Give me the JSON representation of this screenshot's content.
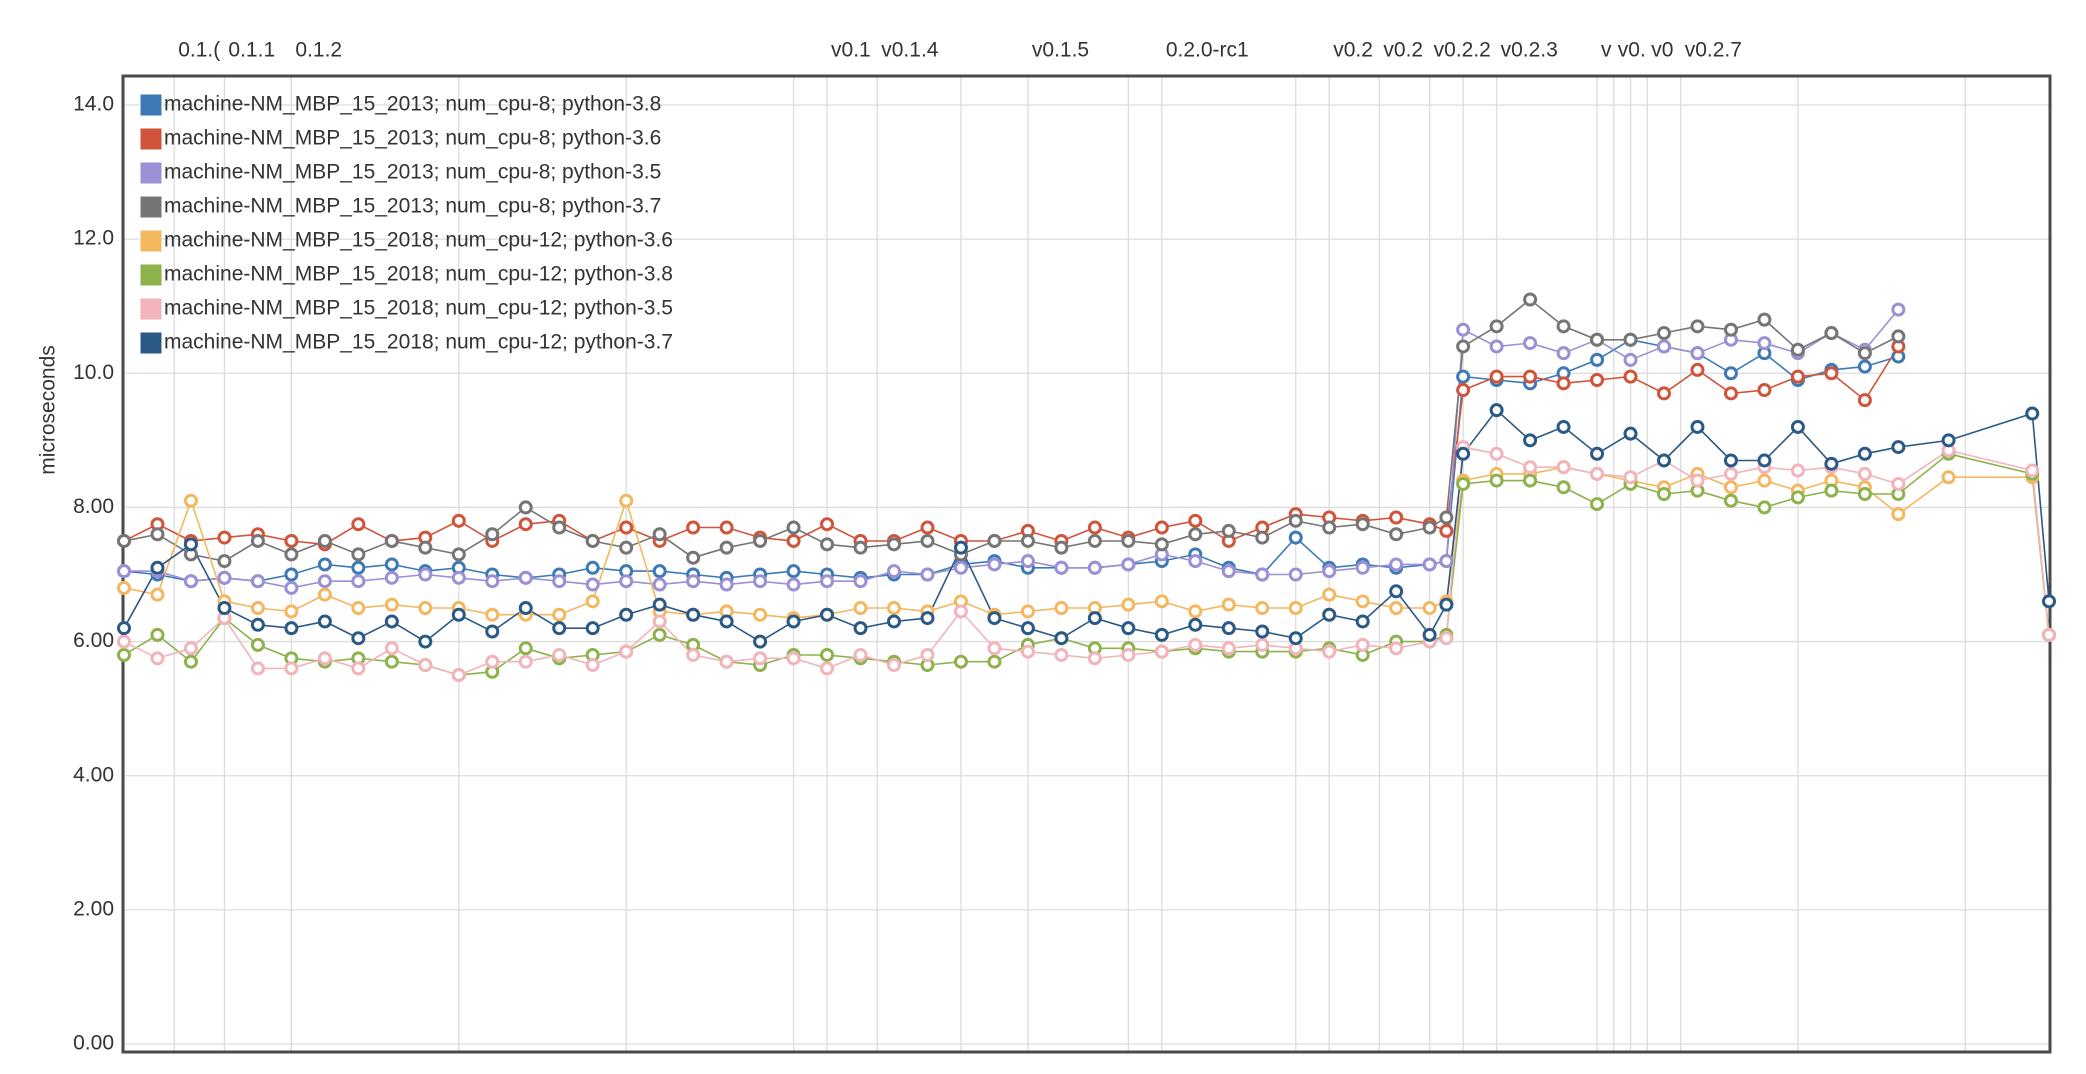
{
  "chart_data": {
    "type": "line",
    "y_label": "microseconds",
    "x": [
      0,
      2,
      4,
      6,
      8,
      10,
      12,
      14,
      16,
      18,
      20,
      22,
      24,
      26,
      28,
      30,
      32,
      34,
      36,
      38,
      40,
      42,
      44,
      46,
      48,
      50,
      52,
      54,
      56,
      58,
      60,
      62,
      64,
      66,
      68,
      70,
      72,
      74,
      76,
      78,
      79,
      80,
      82,
      84,
      86,
      88,
      90,
      92,
      94,
      96,
      98,
      100,
      102,
      104,
      106,
      109,
      114,
      115
    ],
    "xlim": [
      0,
      115
    ],
    "xticks": [
      0,
      10,
      20,
      30,
      40,
      50,
      60,
      70,
      80,
      90,
      100,
      110
    ],
    "ylim": [
      0,
      14
    ],
    "yticks": [
      {
        "value": 0,
        "label": "0.00"
      },
      {
        "value": 2,
        "label": "2.00"
      },
      {
        "value": 4,
        "label": "4.00"
      },
      {
        "value": 6,
        "label": "6.00"
      },
      {
        "value": 8,
        "label": "8.00"
      },
      {
        "value": 10,
        "label": "10.0"
      },
      {
        "value": 12,
        "label": "12.0"
      },
      {
        "value": 14,
        "label": "14.0"
      }
    ],
    "grid": true,
    "legend": "top-left",
    "annotations": [
      {
        "x": 3,
        "label": "0.1.("
      },
      {
        "x": 6,
        "label": "0.1.1"
      },
      {
        "x": 10,
        "label": "0.1.2"
      },
      {
        "x": 42,
        "label": "v0.1"
      },
      {
        "x": 45,
        "label": "v0.1.4"
      },
      {
        "x": 54,
        "label": "v0.1.5"
      },
      {
        "x": 62,
        "label": "0.2.0-rc1"
      },
      {
        "x": 72,
        "label": "v0.2"
      },
      {
        "x": 75,
        "label": "v0.2"
      },
      {
        "x": 78,
        "label": "v0.2.2"
      },
      {
        "x": 82,
        "label": "v0.2.3"
      },
      {
        "x": 88,
        "label": "v"
      },
      {
        "x": 89,
        "label": "v0."
      },
      {
        "x": 91,
        "label": "v0"
      },
      {
        "x": 93,
        "label": "v0.2.7"
      }
    ],
    "series": [
      {
        "name": "machine-NM_MBP_15_2013; num_cpu-8; python-3.8",
        "color": "#3d7ab5",
        "values": [
          7.05,
          7.0,
          6.9,
          6.95,
          6.9,
          7.0,
          7.15,
          7.1,
          7.15,
          7.05,
          7.1,
          7.0,
          6.95,
          7.0,
          7.1,
          7.05,
          7.05,
          7.0,
          6.95,
          7.0,
          7.05,
          7.0,
          6.95,
          7.0,
          7.0,
          7.15,
          7.2,
          7.1,
          7.1,
          7.1,
          7.15,
          7.2,
          7.3,
          7.1,
          7.0,
          7.55,
          7.1,
          7.15,
          7.1,
          7.15,
          7.2,
          9.95,
          9.9,
          9.85,
          10.0,
          10.2,
          10.5,
          10.4,
          10.3,
          10.0,
          10.3,
          9.9,
          10.05,
          10.1,
          10.25,
          null,
          null,
          null
        ]
      },
      {
        "name": "machine-NM_MBP_15_2013; num_cpu-8; python-3.6",
        "color": "#d1533a",
        "values": [
          7.5,
          7.75,
          7.5,
          7.55,
          7.6,
          7.5,
          7.45,
          7.75,
          7.5,
          7.55,
          7.8,
          7.5,
          7.75,
          7.8,
          7.5,
          7.7,
          7.5,
          7.7,
          7.7,
          7.55,
          7.5,
          7.75,
          7.5,
          7.5,
          7.7,
          7.5,
          7.5,
          7.65,
          7.5,
          7.7,
          7.55,
          7.7,
          7.8,
          7.5,
          7.7,
          7.9,
          7.85,
          7.8,
          7.85,
          7.75,
          7.65,
          9.75,
          9.95,
          9.95,
          9.85,
          9.9,
          9.95,
          9.7,
          10.05,
          9.7,
          9.75,
          9.95,
          10.0,
          9.6,
          10.4,
          null,
          null,
          null
        ]
      },
      {
        "name": "machine-NM_MBP_15_2013; num_cpu-8; python-3.5",
        "color": "#9b90d6",
        "values": [
          7.05,
          7.05,
          6.9,
          6.95,
          6.9,
          6.8,
          6.9,
          6.9,
          6.95,
          7.0,
          6.95,
          6.9,
          6.95,
          6.9,
          6.85,
          6.9,
          6.85,
          6.9,
          6.85,
          6.9,
          6.85,
          6.9,
          6.9,
          7.05,
          7.0,
          7.1,
          7.15,
          7.2,
          7.1,
          7.1,
          7.15,
          7.3,
          7.2,
          7.05,
          7.0,
          7.0,
          7.05,
          7.1,
          7.15,
          7.15,
          7.2,
          10.65,
          10.4,
          10.45,
          10.3,
          10.5,
          10.2,
          10.4,
          10.3,
          10.5,
          10.45,
          10.3,
          10.6,
          10.35,
          10.95,
          null,
          null,
          null
        ]
      },
      {
        "name": "machine-NM_MBP_15_2013; num_cpu-8; python-3.7",
        "color": "#757575",
        "values": [
          7.5,
          7.6,
          7.3,
          7.2,
          7.5,
          7.3,
          7.5,
          7.3,
          7.5,
          7.4,
          7.3,
          7.6,
          8.0,
          7.7,
          7.5,
          7.4,
          7.6,
          7.25,
          7.4,
          7.5,
          7.7,
          7.45,
          7.4,
          7.45,
          7.5,
          7.3,
          7.5,
          7.5,
          7.4,
          7.5,
          7.5,
          7.45,
          7.6,
          7.65,
          7.55,
          7.8,
          7.7,
          7.75,
          7.6,
          7.7,
          7.85,
          10.4,
          10.7,
          11.1,
          10.7,
          10.5,
          10.5,
          10.6,
          10.7,
          10.65,
          10.8,
          10.35,
          10.6,
          10.3,
          10.55,
          null,
          null,
          null
        ]
      },
      {
        "name": "machine-NM_MBP_15_2018; num_cpu-12; python-3.6",
        "color": "#f4b75f",
        "values": [
          6.8,
          6.7,
          8.1,
          6.6,
          6.5,
          6.45,
          6.7,
          6.5,
          6.55,
          6.5,
          6.5,
          6.4,
          6.4,
          6.4,
          6.6,
          8.1,
          6.45,
          6.4,
          6.45,
          6.4,
          6.35,
          6.4,
          6.5,
          6.5,
          6.45,
          6.6,
          6.4,
          6.45,
          6.5,
          6.5,
          6.55,
          6.6,
          6.45,
          6.55,
          6.5,
          6.5,
          6.7,
          6.6,
          6.5,
          6.5,
          6.6,
          8.4,
          8.5,
          8.5,
          8.6,
          8.5,
          8.4,
          8.3,
          8.5,
          8.3,
          8.4,
          8.25,
          8.4,
          8.3,
          7.9,
          8.45,
          8.45,
          6.1
        ]
      },
      {
        "name": "machine-NM_MBP_15_2018; num_cpu-12; python-3.8",
        "color": "#8db24c",
        "values": [
          5.8,
          6.1,
          5.7,
          6.35,
          5.95,
          5.75,
          5.7,
          5.75,
          5.7,
          5.65,
          5.5,
          5.55,
          5.9,
          5.75,
          5.8,
          5.85,
          6.1,
          5.95,
          5.7,
          5.65,
          5.8,
          5.8,
          5.75,
          5.7,
          5.65,
          5.7,
          5.7,
          5.95,
          6.05,
          5.9,
          5.9,
          5.85,
          5.9,
          5.85,
          5.85,
          5.85,
          5.9,
          5.8,
          6.0,
          6.0,
          6.1,
          8.35,
          8.4,
          8.4,
          8.3,
          8.05,
          8.35,
          8.2,
          8.25,
          8.1,
          8.0,
          8.15,
          8.25,
          8.2,
          8.2,
          8.8,
          8.5,
          6.1
        ]
      },
      {
        "name": "machine-NM_MBP_15_2018; num_cpu-12; python-3.5",
        "color": "#f2b3ba",
        "values": [
          6.0,
          5.75,
          5.9,
          6.35,
          5.6,
          5.6,
          5.75,
          5.6,
          5.9,
          5.65,
          5.5,
          5.7,
          5.7,
          5.8,
          5.65,
          5.85,
          6.3,
          5.8,
          5.7,
          5.75,
          5.75,
          5.6,
          5.8,
          5.65,
          5.8,
          6.45,
          5.9,
          5.85,
          5.8,
          5.75,
          5.8,
          5.85,
          5.95,
          5.9,
          5.95,
          5.9,
          5.85,
          5.95,
          5.9,
          6.0,
          6.05,
          8.9,
          8.8,
          8.6,
          8.6,
          8.5,
          8.45,
          8.7,
          8.4,
          8.5,
          8.6,
          8.55,
          8.6,
          8.5,
          8.35,
          8.85,
          8.55,
          6.1
        ]
      },
      {
        "name": "machine-NM_MBP_15_2018; num_cpu-12; python-3.7",
        "color": "#2b5986",
        "values": [
          6.2,
          7.1,
          7.45,
          6.5,
          6.25,
          6.2,
          6.3,
          6.05,
          6.3,
          6.0,
          6.4,
          6.15,
          6.5,
          6.2,
          6.2,
          6.4,
          6.55,
          6.4,
          6.3,
          6.0,
          6.3,
          6.4,
          6.2,
          6.3,
          6.35,
          7.4,
          6.35,
          6.2,
          6.05,
          6.35,
          6.2,
          6.1,
          6.25,
          6.2,
          6.15,
          6.05,
          6.4,
          6.3,
          6.75,
          6.1,
          6.55,
          8.8,
          9.45,
          9.0,
          9.2,
          8.8,
          9.1,
          8.7,
          9.2,
          8.7,
          8.7,
          9.2,
          8.65,
          8.8,
          8.9,
          9.0,
          9.4,
          6.6
        ]
      }
    ]
  }
}
